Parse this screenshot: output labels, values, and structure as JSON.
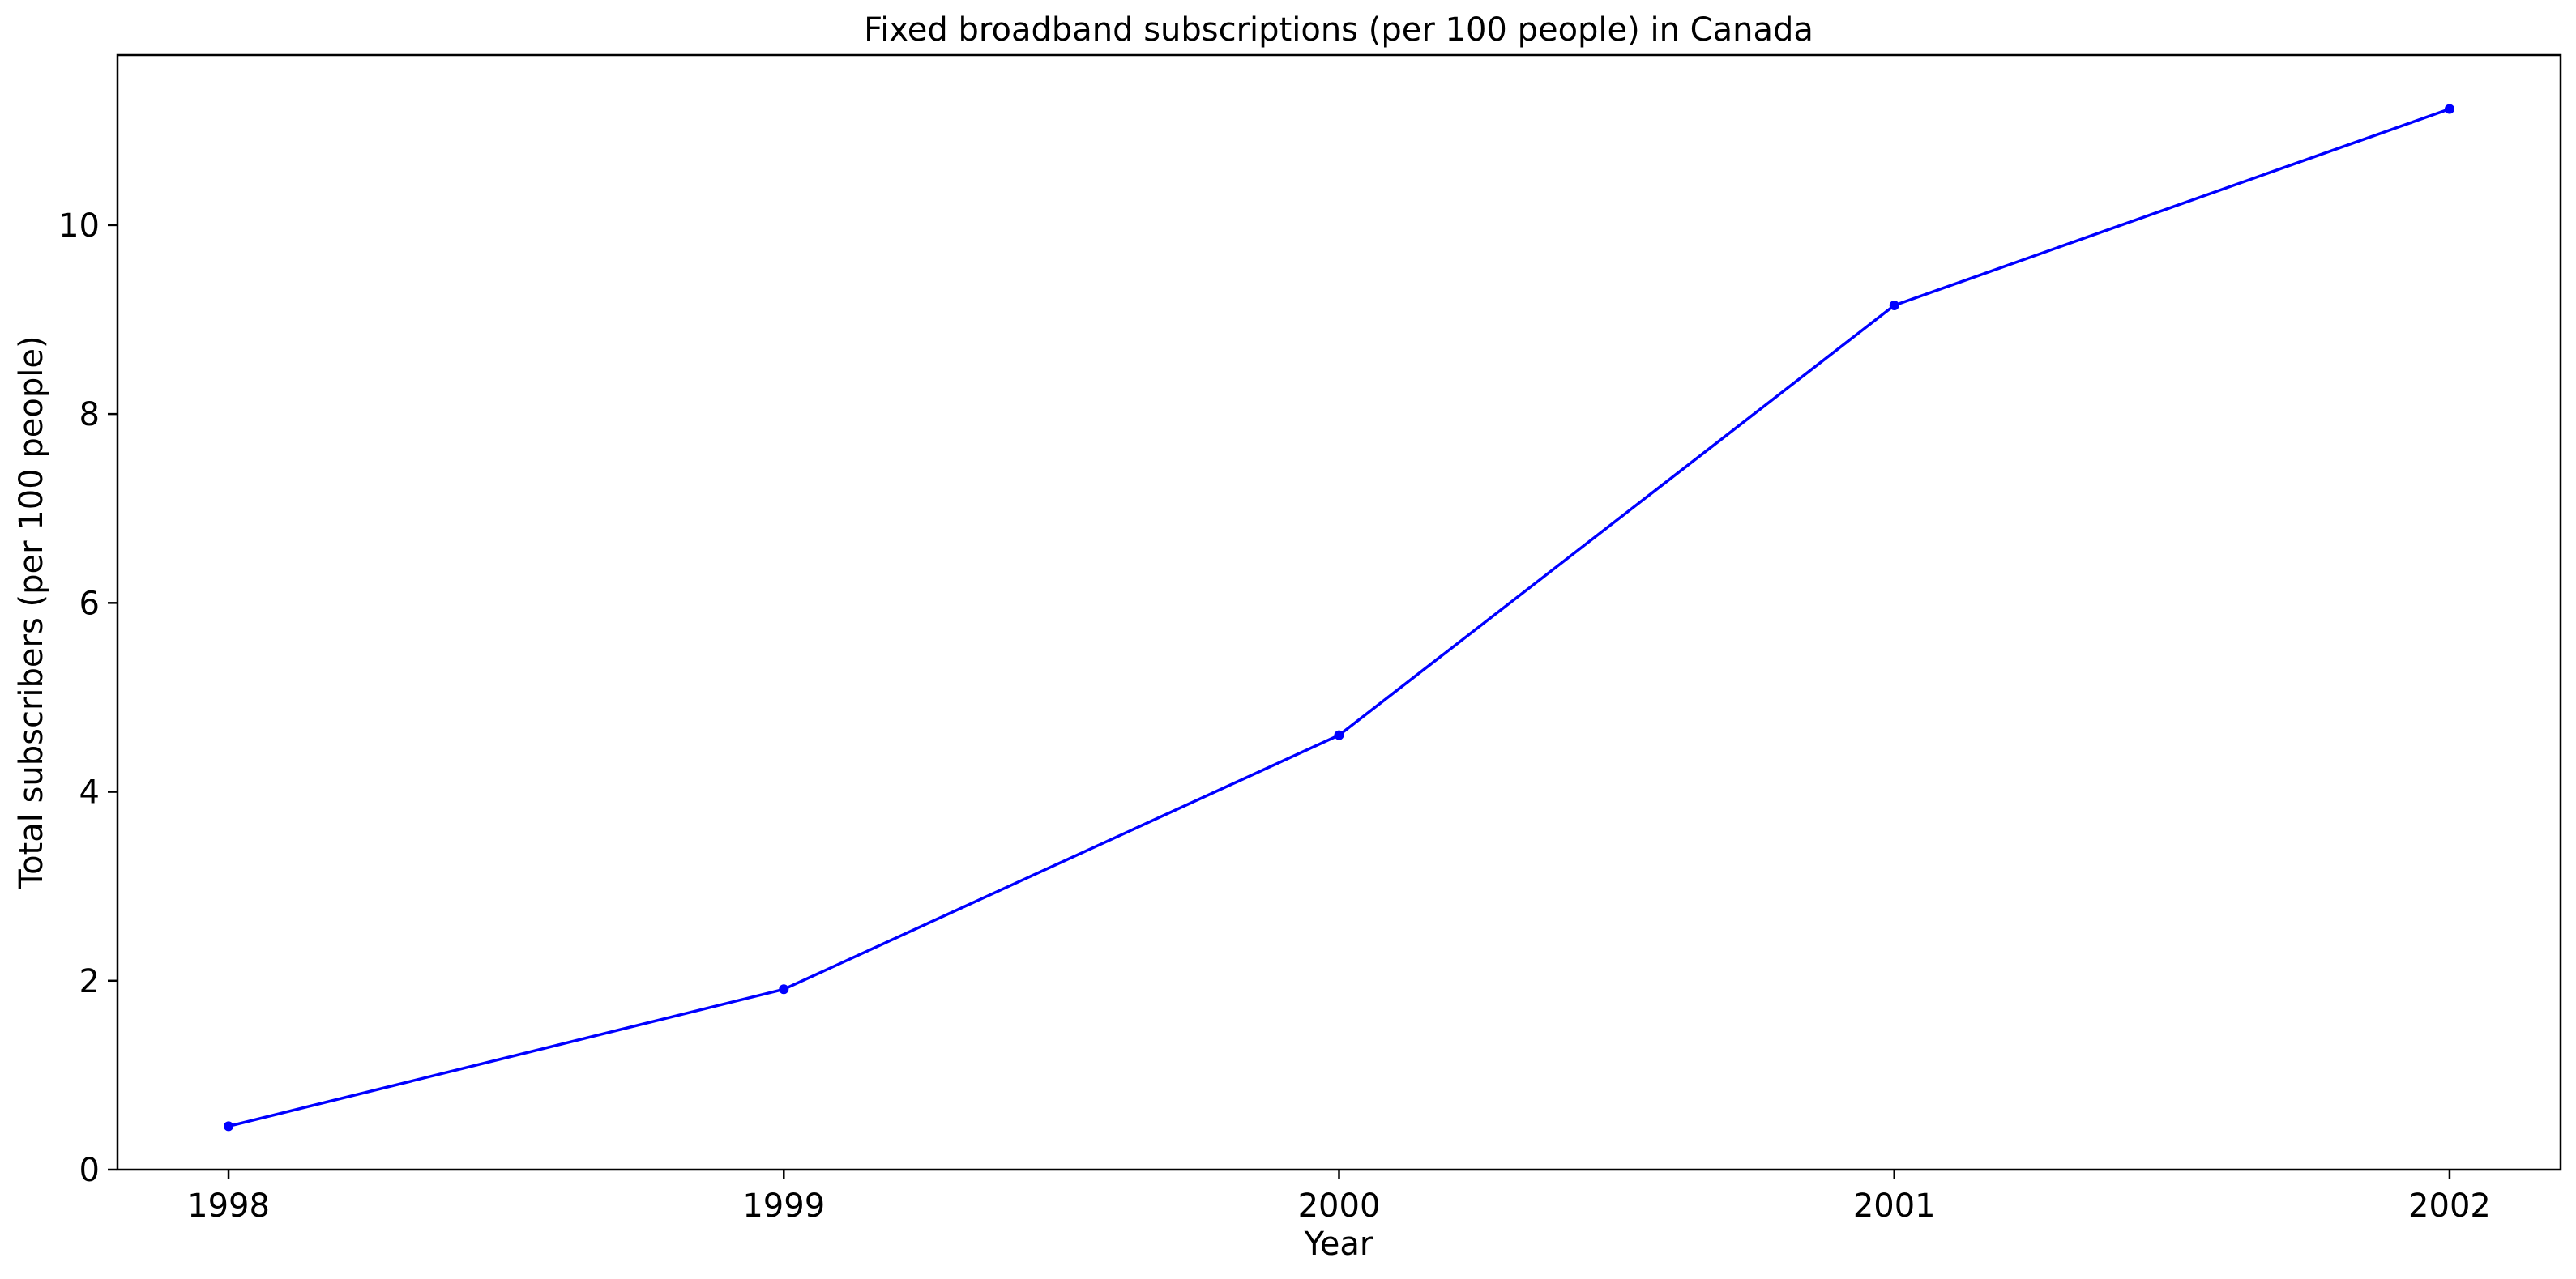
{
  "chart_data": {
    "type": "line",
    "title": "Fixed broadband subscriptions (per 100 people) in Canada",
    "xlabel": "Year",
    "ylabel": "Total subscribers (per 100 people)",
    "x": [
      1998,
      1999,
      2000,
      2001,
      2002
    ],
    "x_tick_labels": [
      "1998",
      "1999",
      "2000",
      "2001",
      "2002"
    ],
    "series": [
      {
        "values": [
          0.46,
          1.91,
          4.6,
          9.15,
          11.23
        ],
        "color": "#0000ff",
        "marker": "dot"
      }
    ],
    "xlim": [
      1997.8,
      2002.2
    ],
    "ylim": [
      0,
      11.8
    ],
    "y_ticks": [
      0,
      2,
      4,
      6,
      8,
      10
    ],
    "y_tick_labels": [
      "0",
      "2",
      "4",
      "6",
      "8",
      "10"
    ],
    "grid": false,
    "legend": "none"
  }
}
